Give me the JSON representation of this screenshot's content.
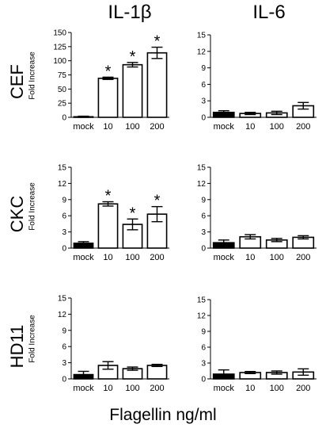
{
  "figure": {
    "col_titles": [
      "IL-1β",
      "IL-6"
    ],
    "row_titles": [
      "CEF",
      "CKC",
      "HD11"
    ],
    "ylabel": "Fold Increase",
    "xlabel": "Flagellin ng/ml"
  },
  "chart_data": [
    {
      "type": "bar",
      "row": "CEF",
      "col": "IL-1β",
      "categories": [
        "mock",
        "10",
        "100",
        "200"
      ],
      "values": [
        1,
        69,
        93,
        114
      ],
      "errors": [
        1,
        2,
        4,
        10
      ],
      "significant": [
        false,
        true,
        true,
        true
      ],
      "ylim": [
        0,
        150
      ],
      "yticks": [
        0,
        25,
        50,
        75,
        100,
        125,
        150
      ],
      "ylabel": "Fold Increase"
    },
    {
      "type": "bar",
      "row": "CEF",
      "col": "IL-6",
      "categories": [
        "mock",
        "10",
        "100",
        "200"
      ],
      "values": [
        0.9,
        0.7,
        0.8,
        2.1
      ],
      "errors": [
        0.3,
        0.2,
        0.3,
        0.6
      ],
      "significant": [
        false,
        false,
        false,
        false
      ],
      "ylim": [
        0,
        15
      ],
      "yticks": [
        0,
        3,
        6,
        9,
        12,
        15
      ],
      "ylabel": ""
    },
    {
      "type": "bar",
      "row": "CKC",
      "col": "IL-1β",
      "categories": [
        "mock",
        "10",
        "100",
        "200"
      ],
      "values": [
        0.9,
        8.2,
        4.4,
        6.3
      ],
      "errors": [
        0.3,
        0.4,
        1.0,
        1.4
      ],
      "significant": [
        false,
        true,
        true,
        true
      ],
      "ylim": [
        0,
        15
      ],
      "yticks": [
        0,
        3,
        6,
        9,
        12,
        15
      ],
      "ylabel": "Fold Increase"
    },
    {
      "type": "bar",
      "row": "CKC",
      "col": "IL-6",
      "categories": [
        "mock",
        "10",
        "100",
        "200"
      ],
      "values": [
        1.0,
        2.1,
        1.5,
        2.0
      ],
      "errors": [
        0.5,
        0.4,
        0.3,
        0.3
      ],
      "significant": [
        false,
        false,
        false,
        false
      ],
      "ylim": [
        0,
        15
      ],
      "yticks": [
        0,
        3,
        6,
        9,
        12,
        15
      ],
      "ylabel": ""
    },
    {
      "type": "bar",
      "row": "HD11",
      "col": "IL-1β",
      "categories": [
        "mock",
        "10",
        "100",
        "200"
      ],
      "values": [
        0.8,
        2.5,
        1.9,
        2.5
      ],
      "errors": [
        0.6,
        0.7,
        0.3,
        0.2
      ],
      "significant": [
        false,
        false,
        false,
        false
      ],
      "ylim": [
        0,
        15
      ],
      "yticks": [
        0,
        3,
        6,
        9,
        12,
        15
      ],
      "ylabel": "Fold Increase"
    },
    {
      "type": "bar",
      "row": "HD11",
      "col": "IL-6",
      "categories": [
        "mock",
        "10",
        "100",
        "200"
      ],
      "values": [
        0.9,
        1.2,
        1.2,
        1.3
      ],
      "errors": [
        0.8,
        0.2,
        0.3,
        0.6
      ],
      "significant": [
        false,
        false,
        false,
        false
      ],
      "ylim": [
        0,
        15
      ],
      "yticks": [
        0,
        3,
        6,
        9,
        12,
        15
      ],
      "ylabel": ""
    }
  ]
}
